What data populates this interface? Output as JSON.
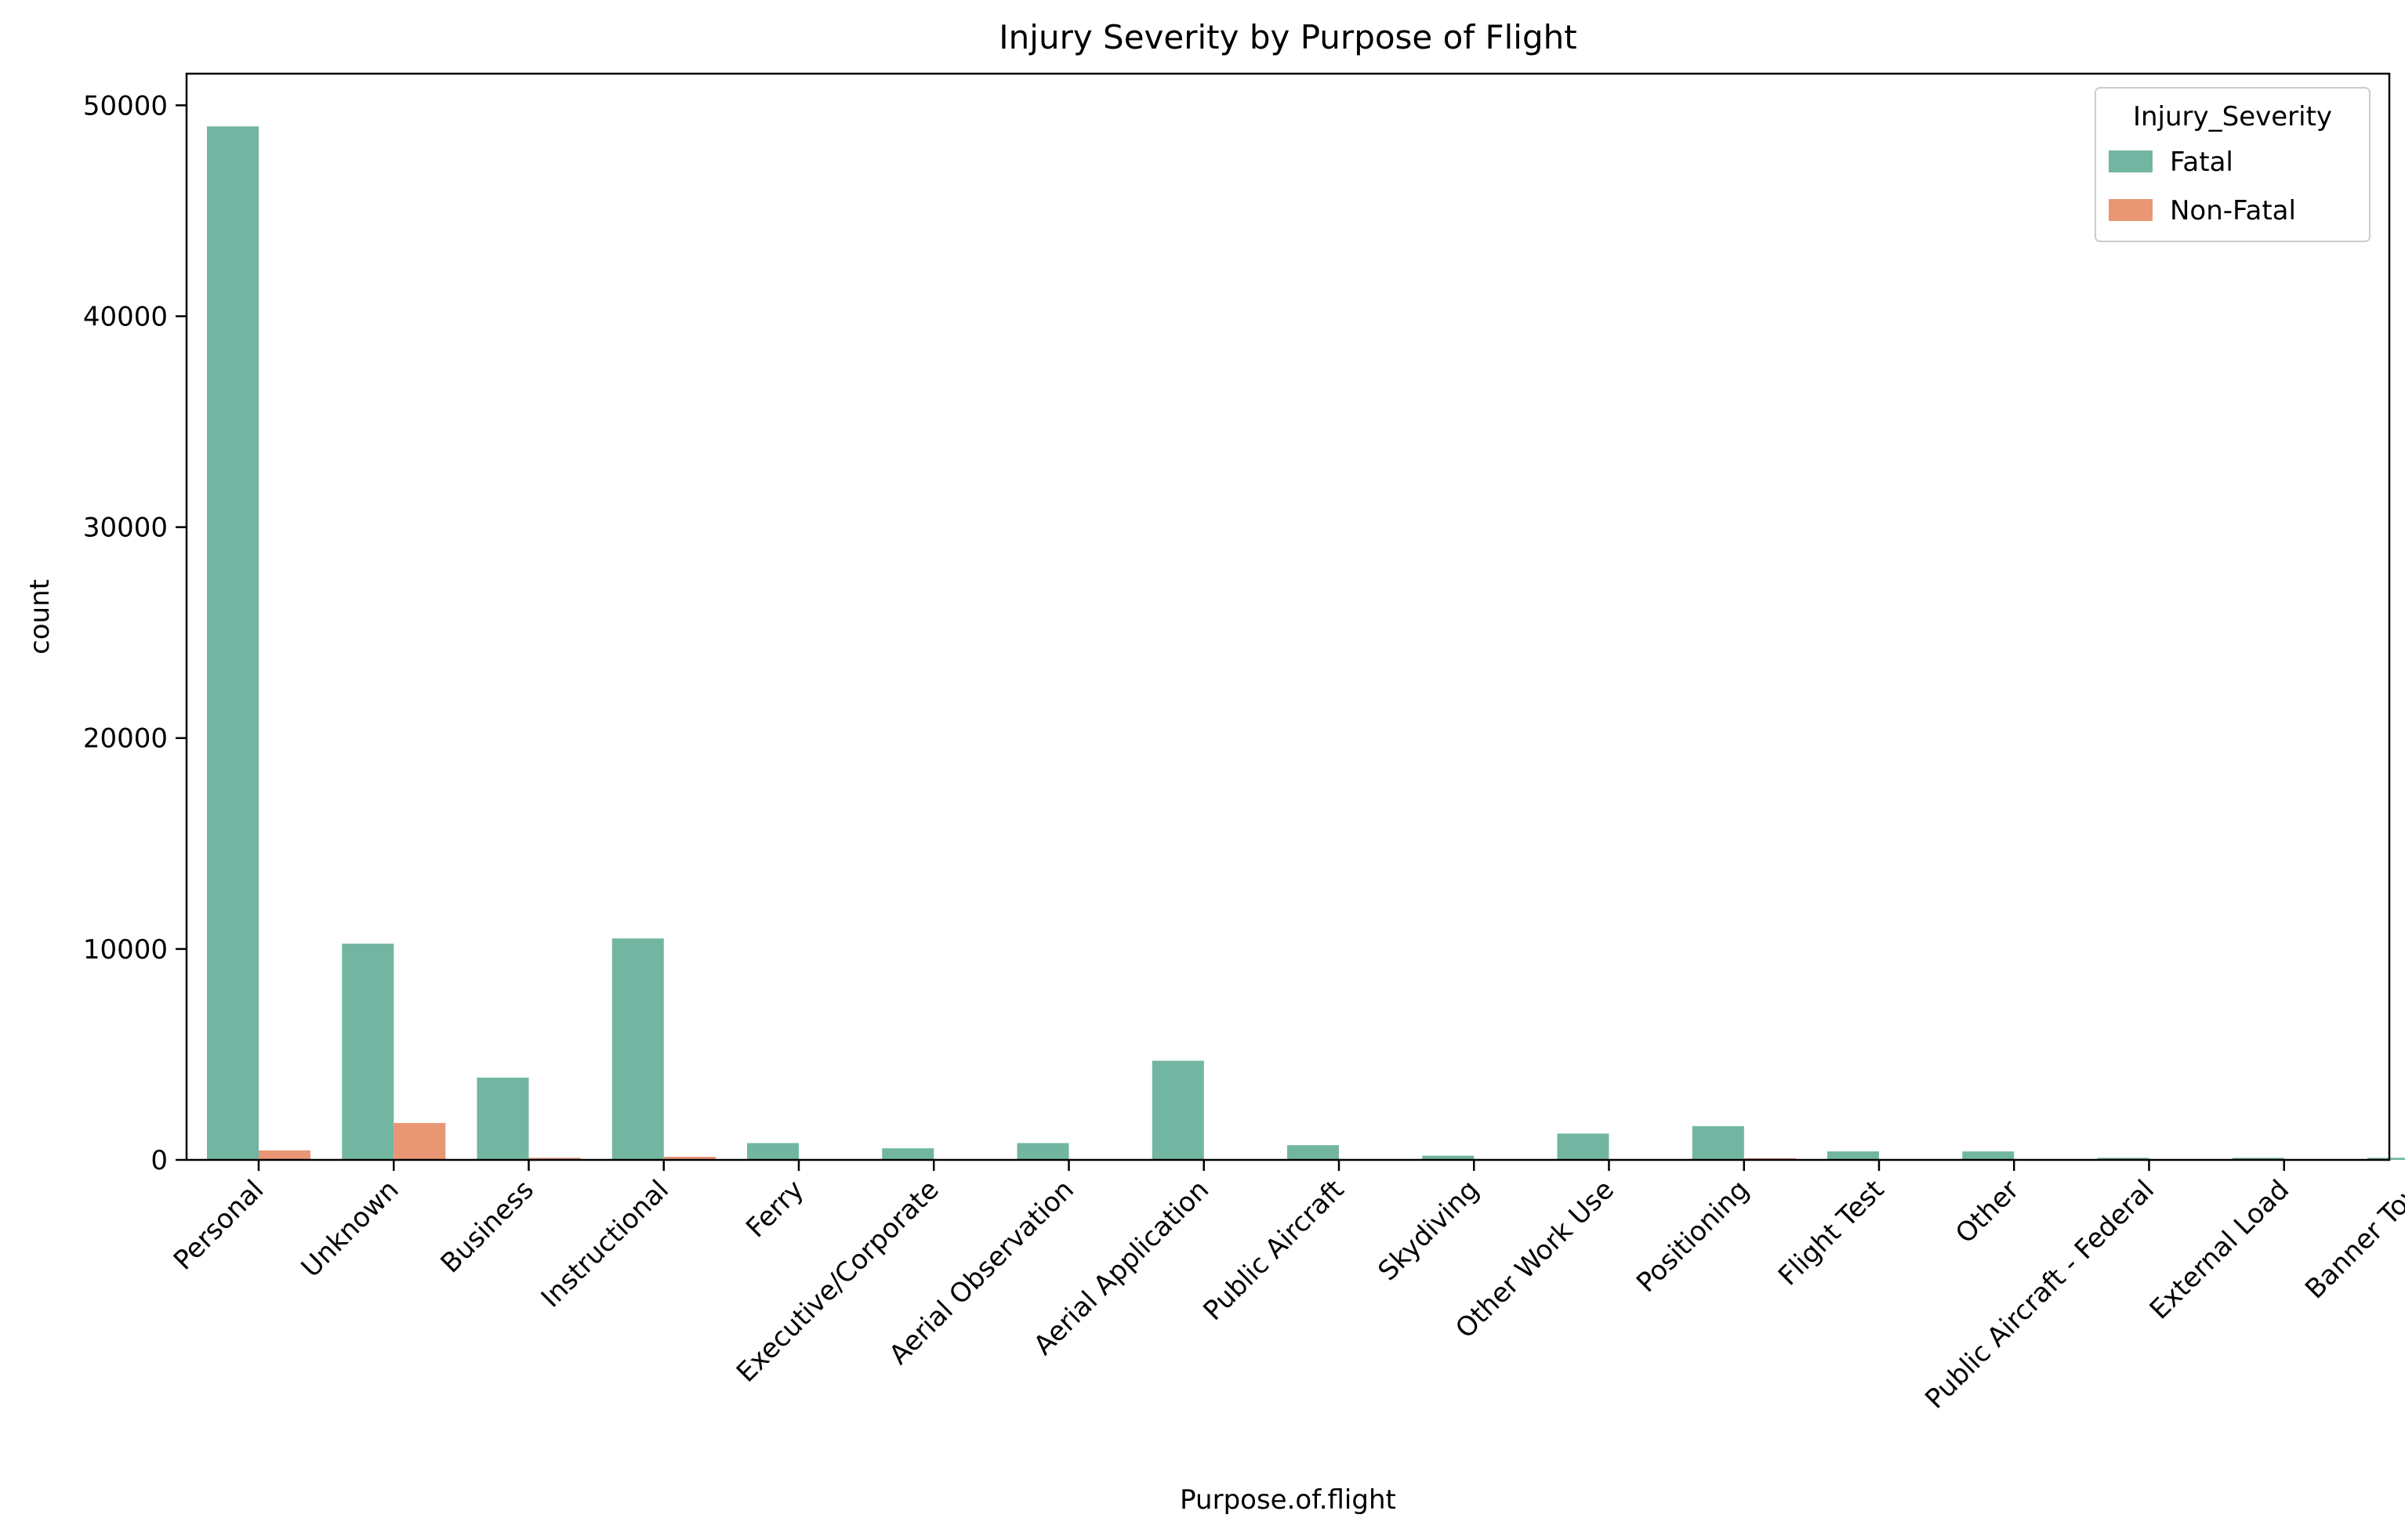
{
  "chart_data": {
    "type": "bar",
    "title": "Injury Severity by Purpose of Flight",
    "xlabel": "Purpose.of.flight",
    "ylabel": "count",
    "ylim": [
      0,
      51500
    ],
    "yticks": [
      0,
      10000,
      20000,
      30000,
      40000,
      50000
    ],
    "grid": false,
    "legend": {
      "title": "Injury_Severity",
      "placement": "top-right"
    },
    "categories": [
      "Personal",
      "Unknown",
      "Business",
      "Instructional",
      "Ferry",
      "Executive/Corporate",
      "Aerial Observation",
      "Aerial Application",
      "Public Aircraft",
      "Skydiving",
      "Other Work Use",
      "Positioning",
      "Flight Test",
      "Other",
      "Public Aircraft - Federal",
      "External Load",
      "Banner Tow"
    ],
    "series": [
      {
        "name": "Fatal",
        "color": "#72b6a1",
        "values": [
          49000,
          10250,
          3900,
          10500,
          800,
          550,
          800,
          4700,
          700,
          200,
          1250,
          1600,
          400,
          400,
          100,
          100,
          100
        ]
      },
      {
        "name": "Non-Fatal",
        "color": "#e99675",
        "values": [
          450,
          1750,
          100,
          150,
          20,
          20,
          20,
          30,
          20,
          10,
          20,
          80,
          10,
          10,
          5,
          5,
          5
        ]
      }
    ]
  }
}
